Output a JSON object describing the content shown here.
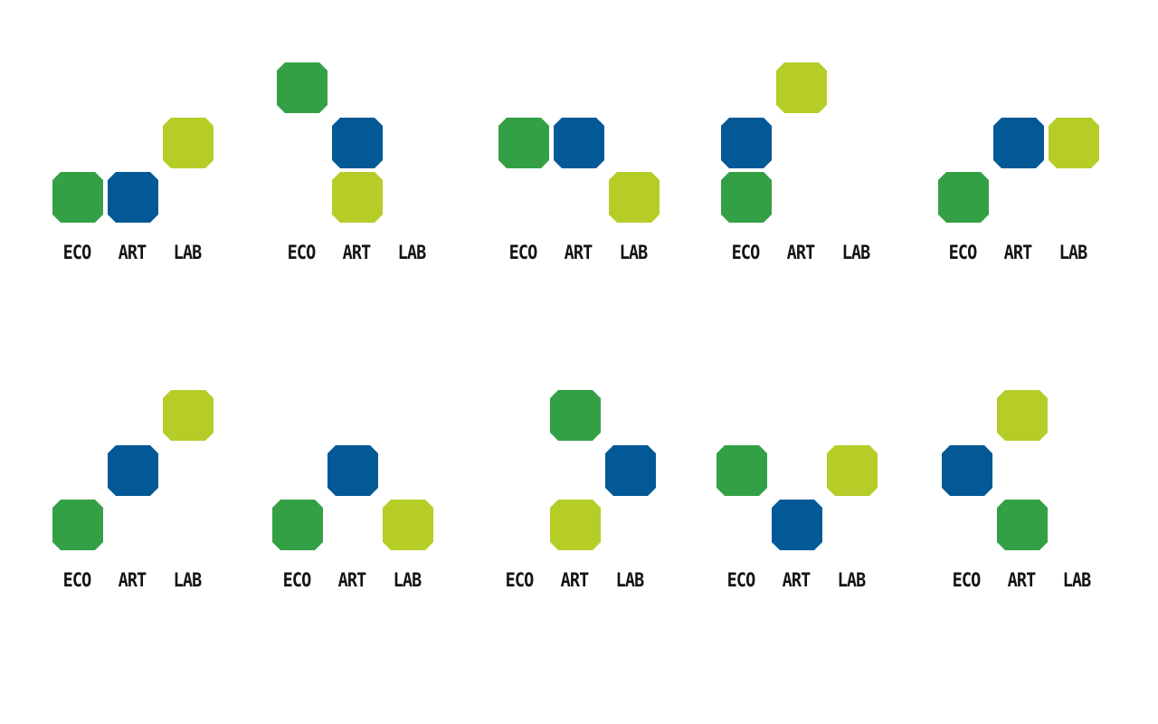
{
  "colors": {
    "green": "#34a045",
    "blue": "#035995",
    "lime": "#b6cd28",
    "text": "#141414"
  },
  "logos": [
    {
      "words": [
        "ECO",
        "ART",
        "LAB"
      ]
    },
    {
      "words": [
        "ECO",
        "ART",
        "LAB"
      ]
    },
    {
      "words": [
        "ECO",
        "ART",
        "LAB"
      ]
    },
    {
      "words": [
        "ECO",
        "ART",
        "LAB"
      ]
    },
    {
      "words": [
        "ECO",
        "ART",
        "LAB"
      ]
    },
    {
      "words": [
        "ECO",
        "ART",
        "LAB"
      ]
    },
    {
      "words": [
        "ECO",
        "ART",
        "LAB"
      ]
    },
    {
      "words": [
        "ECO",
        "ART",
        "LAB"
      ]
    },
    {
      "words": [
        "ECO",
        "ART",
        "LAB"
      ]
    },
    {
      "words": [
        "ECO",
        "ART",
        "LAB"
      ]
    }
  ]
}
